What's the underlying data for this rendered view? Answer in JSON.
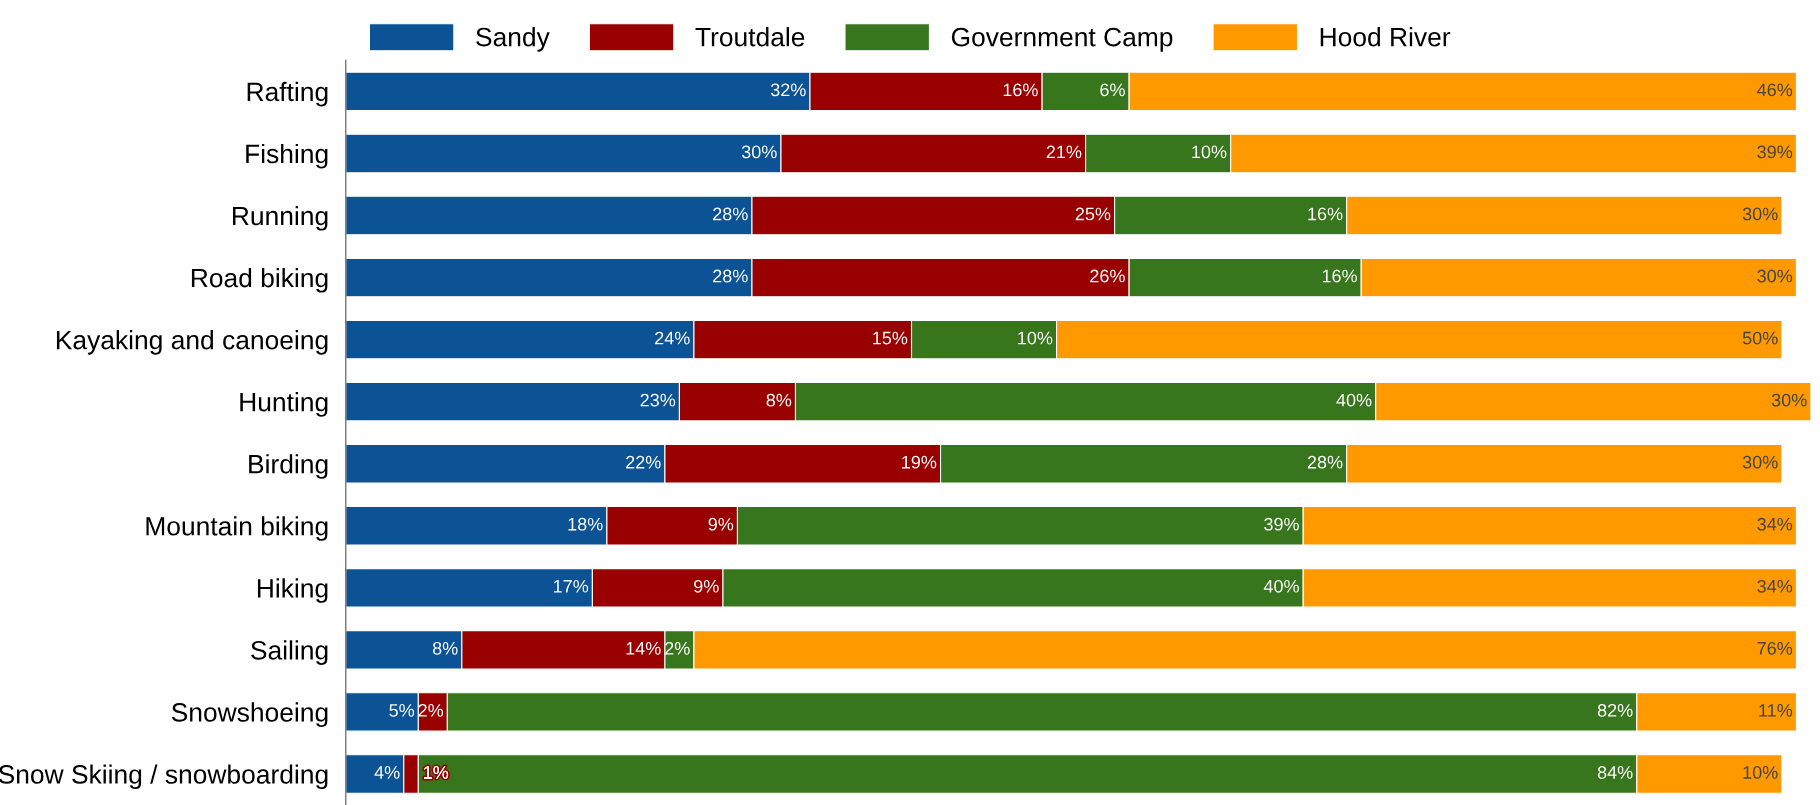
{
  "chart_data": {
    "type": "bar",
    "orientation": "horizontal",
    "stacked": true,
    "legend": "top",
    "grid": false,
    "tick_labels": "y",
    "categories": [
      "Rafting",
      "Fishing",
      "Running",
      "Road biking",
      "Kayaking and canoeing",
      "Hunting",
      "Birding",
      "Mountain biking",
      "Hiking",
      "Sailing",
      "Snowshoeing",
      "Snow Skiing / snowboarding"
    ],
    "series": [
      {
        "name": "Sandy",
        "color": "#0b5394",
        "values": [
          32,
          30,
          28,
          28,
          24,
          23,
          22,
          18,
          17,
          8,
          5,
          4
        ],
        "value_labels": [
          "32%",
          "30%",
          "28%",
          "28%",
          "24%",
          "23%",
          "22%",
          "18%",
          "17%",
          "8%",
          "5%",
          "4%"
        ]
      },
      {
        "name": "Troutdale",
        "color": "#990000",
        "values": [
          16,
          21,
          25,
          26,
          15,
          8,
          19,
          9,
          9,
          14,
          2,
          1
        ],
        "value_labels": [
          "16%",
          "21%",
          "25%",
          "26%",
          "15%",
          "8%",
          "19%",
          "9%",
          "9%",
          "14%",
          "2%",
          "1%"
        ]
      },
      {
        "name": "Government Camp",
        "color": "#38761d",
        "values": [
          6,
          10,
          16,
          16,
          10,
          40,
          28,
          39,
          40,
          2,
          82,
          84
        ],
        "value_labels": [
          "6%",
          "10%",
          "16%",
          "16%",
          "10%",
          "40%",
          "28%",
          "39%",
          "40%",
          "2%",
          "82%",
          "84%"
        ]
      },
      {
        "name": "Hood River",
        "color": "#ff9900",
        "values": [
          46,
          39,
          30,
          30,
          50,
          30,
          30,
          34,
          34,
          76,
          11,
          10
        ],
        "value_labels": [
          "46%",
          "39%",
          "30%",
          "30%",
          "50%",
          "30%",
          "30%",
          "34%",
          "34%",
          "76%",
          "11%",
          "10%"
        ]
      }
    ]
  }
}
